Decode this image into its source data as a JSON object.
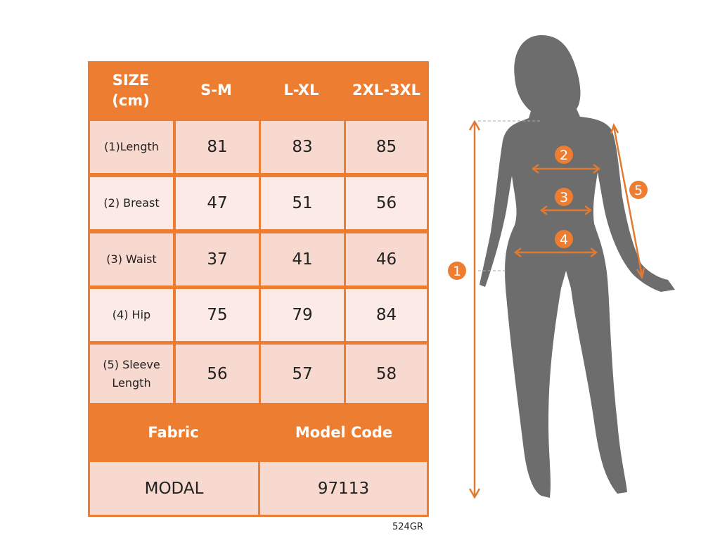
{
  "header": {
    "size_label_line1": "SIZE",
    "size_label_line2": "(cm)",
    "sizes": [
      "S-M",
      "L-XL",
      "2XL-3XL"
    ]
  },
  "rows": [
    {
      "label": "(1)Length",
      "values": [
        "81",
        "83",
        "85"
      ]
    },
    {
      "label": "(2) Breast",
      "values": [
        "47",
        "51",
        "56"
      ]
    },
    {
      "label": "(3) Waist",
      "values": [
        "37",
        "41",
        "46"
      ]
    },
    {
      "label": "(4) Hip",
      "values": [
        "75",
        "79",
        "84"
      ]
    },
    {
      "label_line1": "(5) Sleeve",
      "label_line2": "Length",
      "values": [
        "56",
        "57",
        "58"
      ]
    }
  ],
  "footer": {
    "fabric_label": "Fabric",
    "model_code_label": "Model Code",
    "fabric_value": "MODAL",
    "model_code_value": "97113"
  },
  "product_code": "524GR",
  "figure": {
    "markers": [
      "1",
      "2",
      "3",
      "4",
      "5"
    ]
  },
  "colors": {
    "accent": "#ed7d31",
    "row_dark": "#f8d9cf",
    "row_light": "#fbeae5",
    "silhouette": "#6d6d6d"
  }
}
